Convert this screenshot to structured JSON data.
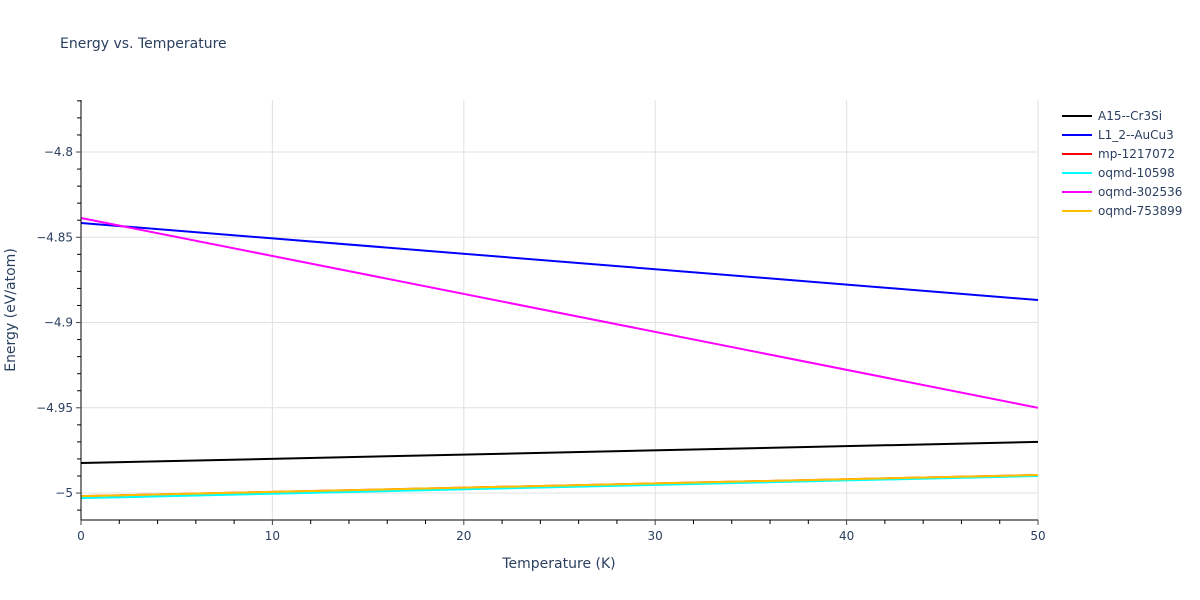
{
  "chart_data": {
    "type": "line",
    "title": "Energy vs. Temperature",
    "xlabel": "Temperature (K)",
    "ylabel": "Energy (eV/atom)",
    "xlim": [
      0,
      50
    ],
    "ylim": [
      -5.0158,
      -4.7695
    ],
    "xticks": [
      0,
      10,
      20,
      30,
      40,
      50
    ],
    "xtick_labels": [
      "0",
      "10",
      "20",
      "30",
      "40",
      "50"
    ],
    "yticks": [
      -5.0,
      -4.95,
      -4.9,
      -4.85,
      -4.8
    ],
    "ytick_labels": [
      "−5",
      "−4.95",
      "−4.9",
      "−4.85",
      "−4.8"
    ],
    "grid": true,
    "legend_position": "right",
    "x": [
      0,
      50
    ],
    "series": [
      {
        "name": "A15--Cr3Si",
        "color": "#000000",
        "values": [
          -4.9824,
          -4.97
        ]
      },
      {
        "name": "L1_2--AuCu3",
        "color": "#0000ff",
        "values": [
          -4.8416,
          -4.8868
        ]
      },
      {
        "name": "mp-1217072",
        "color": "#ff0000",
        "values": [
          -5.0018,
          -4.9894
        ]
      },
      {
        "name": "oqmd-10598",
        "color": "#00ffff",
        "values": [
          -5.003,
          -4.99
        ]
      },
      {
        "name": "oqmd-302536",
        "color": "#ff00ff",
        "values": [
          -4.8387,
          -4.95
        ]
      },
      {
        "name": "oqmd-753899",
        "color": "#ffbf00",
        "values": [
          -5.0018,
          -4.9894
        ]
      }
    ]
  }
}
